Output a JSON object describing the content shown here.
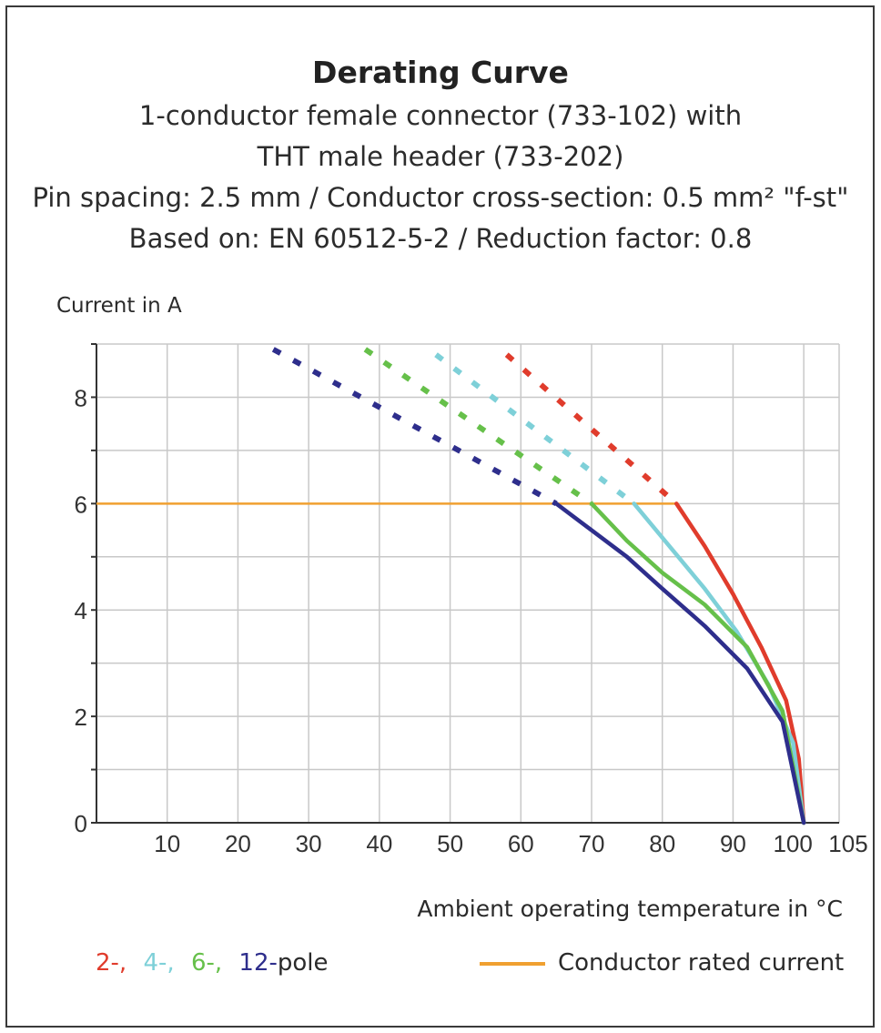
{
  "chart_data": {
    "type": "line",
    "title": "Derating Curve",
    "subtitle_lines": [
      "1-conductor female connector (733-102) with",
      "THT male header (733-202)",
      "Pin spacing: 2.5 mm / Conductor cross-section: 0.5 mm² \"f-st\"",
      "Based on: EN 60512-5-2 / Reduction factor: 0.8"
    ],
    "xlabel": "Ambient operating temperature in °C",
    "ylabel": "Current in A",
    "xlim": [
      0,
      105
    ],
    "ylim": [
      0,
      9
    ],
    "x_ticks": [
      10,
      20,
      30,
      40,
      50,
      60,
      70,
      80,
      90,
      100,
      105
    ],
    "y_ticks": [
      0,
      2,
      4,
      6,
      8
    ],
    "grid": true,
    "rated_current": {
      "name": "Conductor rated current",
      "value": 6,
      "color": "#f0a030"
    },
    "series": [
      {
        "name": "2-pole",
        "color": "#e03c2c",
        "dashed": [
          [
            58,
            8.8
          ],
          [
            82,
            6
          ]
        ],
        "solid": [
          [
            82,
            6
          ],
          [
            86,
            5.2
          ],
          [
            90,
            4.3
          ],
          [
            94,
            3.3
          ],
          [
            97.5,
            2.3
          ],
          [
            99.3,
            1.2
          ],
          [
            100,
            0
          ]
        ]
      },
      {
        "name": "4-pole",
        "color": "#7ed0d8",
        "dashed": [
          [
            48,
            8.8
          ],
          [
            76,
            6
          ]
        ],
        "solid": [
          [
            76,
            6
          ],
          [
            81,
            5.2
          ],
          [
            86,
            4.4
          ],
          [
            90.5,
            3.6
          ],
          [
            95,
            2.6
          ],
          [
            98.5,
            1.5
          ],
          [
            100,
            0
          ]
        ]
      },
      {
        "name": "6-pole",
        "color": "#66c04a",
        "dashed": [
          [
            38,
            8.9
          ],
          [
            70,
            6
          ]
        ],
        "solid": [
          [
            70,
            6
          ],
          [
            75,
            5.3
          ],
          [
            80,
            4.7
          ],
          [
            86,
            4.1
          ],
          [
            92,
            3.3
          ],
          [
            97,
            2.1
          ],
          [
            100,
            0
          ]
        ]
      },
      {
        "name": "12-pole",
        "color": "#2e2e8c",
        "dashed": [
          [
            25,
            8.9
          ],
          [
            65,
            6
          ]
        ],
        "solid": [
          [
            65,
            6
          ],
          [
            70,
            5.5
          ],
          [
            75,
            5
          ],
          [
            80,
            4.4
          ],
          [
            86,
            3.7
          ],
          [
            92,
            2.9
          ],
          [
            97,
            1.9
          ],
          [
            100,
            0
          ]
        ]
      }
    ]
  },
  "legend": {
    "items": [
      {
        "text": "2-,",
        "color": "#e03c2c"
      },
      {
        "text": "4-,",
        "color": "#7ed0d8"
      },
      {
        "text": "6-,",
        "color": "#66c04a"
      },
      {
        "text": "12-",
        "color": "#2e2e8c"
      },
      {
        "text": "pole",
        "color": "#2a2a2a"
      }
    ]
  }
}
